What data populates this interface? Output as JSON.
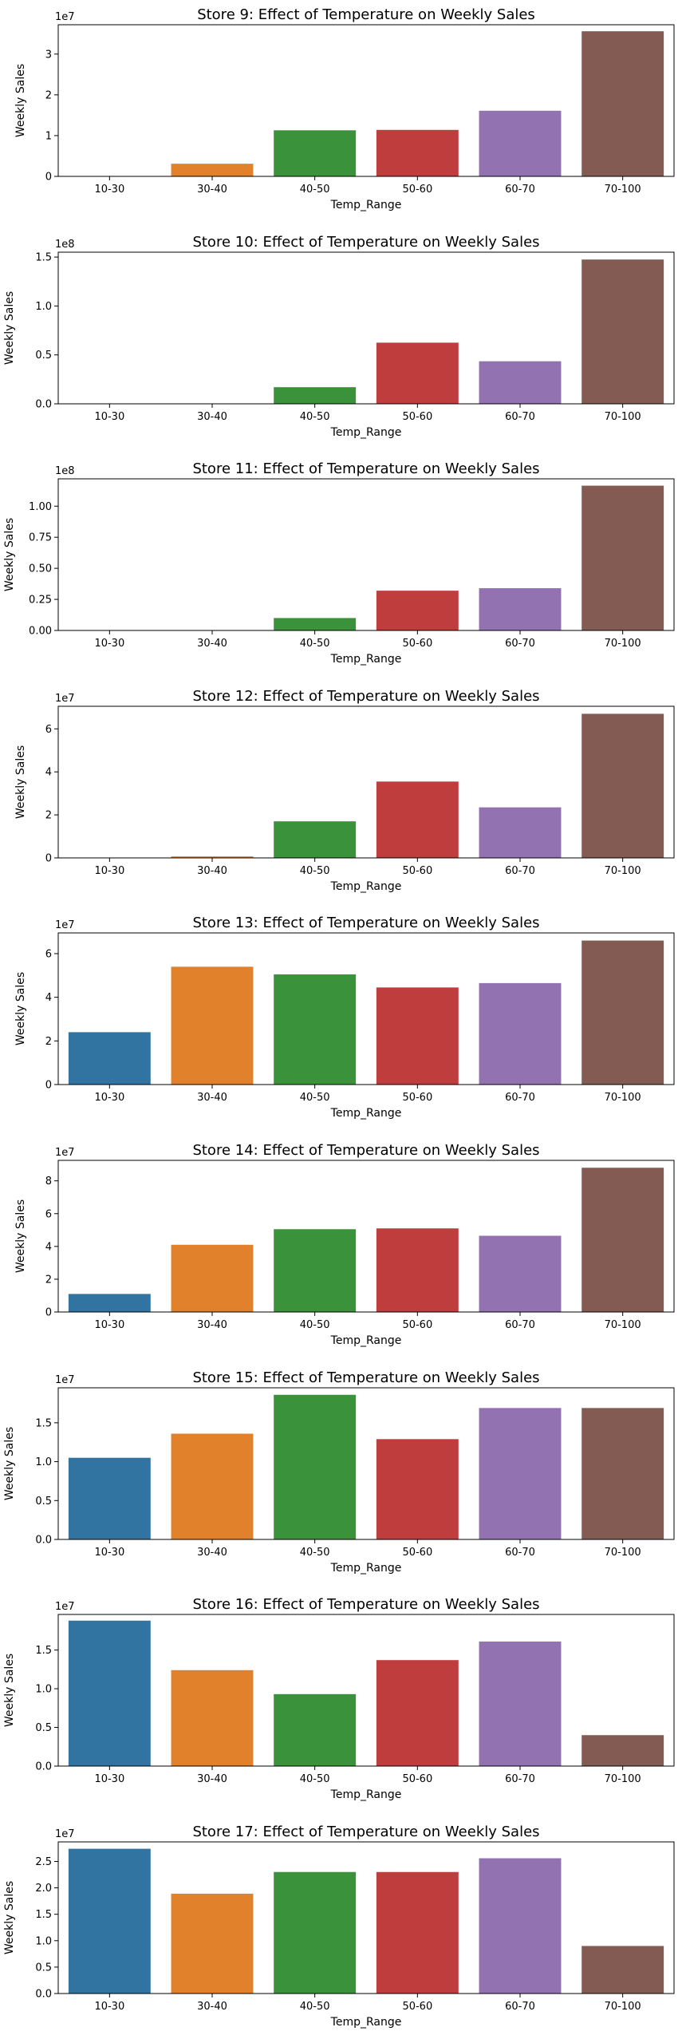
{
  "chart_data": [
    {
      "type": "bar",
      "title": "Store  9: Effect of Temperature on Weekly Sales",
      "xlabel": "Temp_Range",
      "ylabel": "Weekly Sales",
      "categories": [
        "10-30",
        "30-40",
        "40-50",
        "50-60",
        "60-70",
        "70-100"
      ],
      "values": [
        0,
        3100000,
        11300000,
        11400000,
        16100000,
        35600000
      ],
      "ylim": [
        0,
        37200000
      ],
      "yticks": [
        0,
        10000000,
        20000000,
        30000000
      ],
      "ytick_labels": [
        "0",
        "1",
        "2",
        "3"
      ],
      "offset_label": "1e7",
      "grid": false,
      "legend": "none"
    },
    {
      "type": "bar",
      "title": "Store  10: Effect of Temperature on Weekly Sales",
      "xlabel": "Temp_Range",
      "ylabel": "Weekly Sales",
      "categories": [
        "10-30",
        "30-40",
        "40-50",
        "50-60",
        "60-70",
        "70-100"
      ],
      "values": [
        0,
        0,
        17000000,
        62500000,
        43500000,
        147500000
      ],
      "ylim": [
        0,
        155000000
      ],
      "yticks": [
        0,
        50000000,
        100000000,
        150000000
      ],
      "ytick_labels": [
        "0.0",
        "0.5",
        "1.0",
        "1.5"
      ],
      "offset_label": "1e8",
      "grid": false,
      "legend": "none"
    },
    {
      "type": "bar",
      "title": "Store  11: Effect of Temperature on Weekly Sales",
      "xlabel": "Temp_Range",
      "ylabel": "Weekly Sales",
      "categories": [
        "10-30",
        "30-40",
        "40-50",
        "50-60",
        "60-70",
        "70-100"
      ],
      "values": [
        0,
        0,
        10000000,
        32000000,
        34000000,
        116500000
      ],
      "ylim": [
        0,
        122000000
      ],
      "yticks": [
        0,
        25000000,
        50000000,
        75000000,
        100000000
      ],
      "ytick_labels": [
        "0.00",
        "0.25",
        "0.50",
        "0.75",
        "1.00"
      ],
      "offset_label": "1e8",
      "grid": false,
      "legend": "none"
    },
    {
      "type": "bar",
      "title": "Store  12: Effect of Temperature on Weekly Sales",
      "xlabel": "Temp_Range",
      "ylabel": "Weekly Sales",
      "categories": [
        "10-30",
        "30-40",
        "40-50",
        "50-60",
        "60-70",
        "70-100"
      ],
      "values": [
        0,
        700000,
        17000000,
        35500000,
        23500000,
        67000000
      ],
      "ylim": [
        0,
        70500000
      ],
      "yticks": [
        0,
        20000000,
        40000000,
        60000000
      ],
      "ytick_labels": [
        "0",
        "2",
        "4",
        "6"
      ],
      "offset_label": "1e7",
      "grid": false,
      "legend": "none"
    },
    {
      "type": "bar",
      "title": "Store  13: Effect of Temperature on Weekly Sales",
      "xlabel": "Temp_Range",
      "ylabel": "Weekly Sales",
      "categories": [
        "10-30",
        "30-40",
        "40-50",
        "50-60",
        "60-70",
        "70-100"
      ],
      "values": [
        24000000,
        54000000,
        50500000,
        44500000,
        46500000,
        66000000
      ],
      "ylim": [
        0,
        69500000
      ],
      "yticks": [
        0,
        20000000,
        40000000,
        60000000
      ],
      "ytick_labels": [
        "0",
        "2",
        "4",
        "6"
      ],
      "offset_label": "1e7",
      "grid": false,
      "legend": "none"
    },
    {
      "type": "bar",
      "title": "Store  14: Effect of Temperature on Weekly Sales",
      "xlabel": "Temp_Range",
      "ylabel": "Weekly Sales",
      "categories": [
        "10-30",
        "30-40",
        "40-50",
        "50-60",
        "60-70",
        "70-100"
      ],
      "values": [
        11000000,
        41000000,
        50500000,
        51000000,
        46500000,
        88000000
      ],
      "ylim": [
        0,
        92500000
      ],
      "yticks": [
        0,
        20000000,
        40000000,
        60000000,
        80000000
      ],
      "ytick_labels": [
        "0",
        "2",
        "4",
        "6",
        "8"
      ],
      "offset_label": "1e7",
      "grid": false,
      "legend": "none"
    },
    {
      "type": "bar",
      "title": "Store  15: Effect of Temperature on Weekly Sales",
      "xlabel": "Temp_Range",
      "ylabel": "Weekly Sales",
      "categories": [
        "10-30",
        "30-40",
        "40-50",
        "50-60",
        "60-70",
        "70-100"
      ],
      "values": [
        10500000,
        13600000,
        18600000,
        12900000,
        16900000,
        16900000
      ],
      "ylim": [
        0,
        19500000
      ],
      "yticks": [
        0,
        5000000,
        10000000,
        15000000
      ],
      "ytick_labels": [
        "0.0",
        "0.5",
        "1.0",
        "1.5"
      ],
      "offset_label": "1e7",
      "grid": false,
      "legend": "none"
    },
    {
      "type": "bar",
      "title": "Store  16: Effect of Temperature on Weekly Sales",
      "xlabel": "Temp_Range",
      "ylabel": "Weekly Sales",
      "categories": [
        "10-30",
        "30-40",
        "40-50",
        "50-60",
        "60-70",
        "70-100"
      ],
      "values": [
        18800000,
        12400000,
        9300000,
        13700000,
        16100000,
        4000000
      ],
      "ylim": [
        0,
        19600000
      ],
      "yticks": [
        0,
        5000000,
        10000000,
        15000000
      ],
      "ytick_labels": [
        "0.0",
        "0.5",
        "1.0",
        "1.5"
      ],
      "offset_label": "1e7",
      "grid": false,
      "legend": "none"
    },
    {
      "type": "bar",
      "title": "Store  17: Effect of Temperature on Weekly Sales",
      "xlabel": "Temp_Range",
      "ylabel": "Weekly Sales",
      "categories": [
        "10-30",
        "30-40",
        "40-50",
        "50-60",
        "60-70",
        "70-100"
      ],
      "values": [
        27400000,
        18900000,
        23000000,
        23000000,
        25600000,
        9000000
      ],
      "ylim": [
        0,
        28700000
      ],
      "yticks": [
        0,
        5000000,
        10000000,
        15000000,
        20000000,
        25000000
      ],
      "ytick_labels": [
        "0.0",
        "0.5",
        "1.0",
        "1.5",
        "2.0",
        "2.5"
      ],
      "offset_label": "1e7",
      "grid": false,
      "legend": "none"
    }
  ],
  "colors": [
    "#3274a1",
    "#e1812c",
    "#3a923a",
    "#c03d3e",
    "#9372b2",
    "#845b53"
  ]
}
